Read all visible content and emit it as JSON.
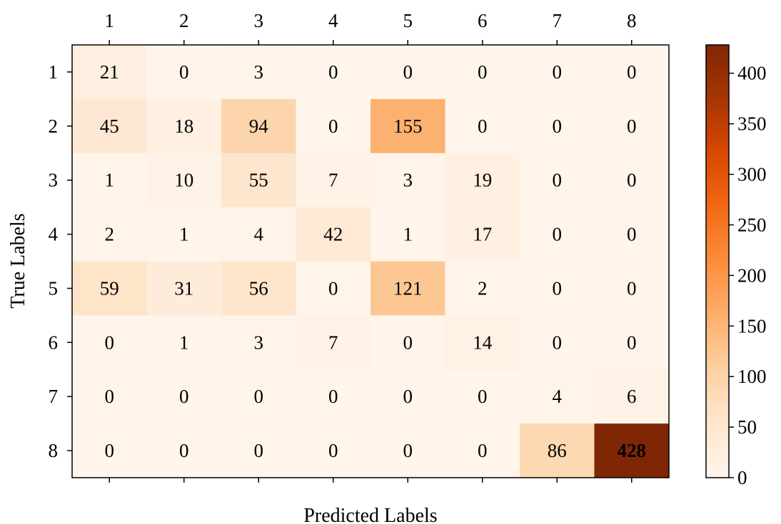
{
  "chart_data": {
    "type": "heatmap",
    "title": "",
    "xlabel": "Predicted Labels",
    "ylabel": "True Labels",
    "x_categories": [
      "1",
      "2",
      "3",
      "4",
      "5",
      "6",
      "7",
      "8"
    ],
    "y_categories": [
      "1",
      "2",
      "3",
      "4",
      "5",
      "6",
      "7",
      "8"
    ],
    "matrix": [
      [
        21,
        0,
        3,
        0,
        0,
        0,
        0,
        0
      ],
      [
        45,
        18,
        94,
        0,
        155,
        0,
        0,
        0
      ],
      [
        1,
        10,
        55,
        7,
        3,
        19,
        0,
        0
      ],
      [
        2,
        1,
        4,
        42,
        1,
        17,
        0,
        0
      ],
      [
        59,
        31,
        56,
        0,
        121,
        2,
        0,
        0
      ],
      [
        0,
        1,
        3,
        7,
        0,
        14,
        0,
        0
      ],
      [
        0,
        0,
        0,
        0,
        0,
        0,
        4,
        6
      ],
      [
        0,
        0,
        0,
        0,
        0,
        0,
        86,
        428
      ]
    ],
    "x_axis_position": "top",
    "colormap": "Oranges",
    "color_range": [
      0,
      428
    ],
    "colorbar": {
      "ticks": [
        0,
        50,
        100,
        150,
        200,
        250,
        300,
        350,
        400
      ],
      "tick_labels": [
        "0",
        "50",
        "100",
        "150",
        "200",
        "250",
        "300",
        "350",
        "400"
      ]
    },
    "grid": false
  }
}
